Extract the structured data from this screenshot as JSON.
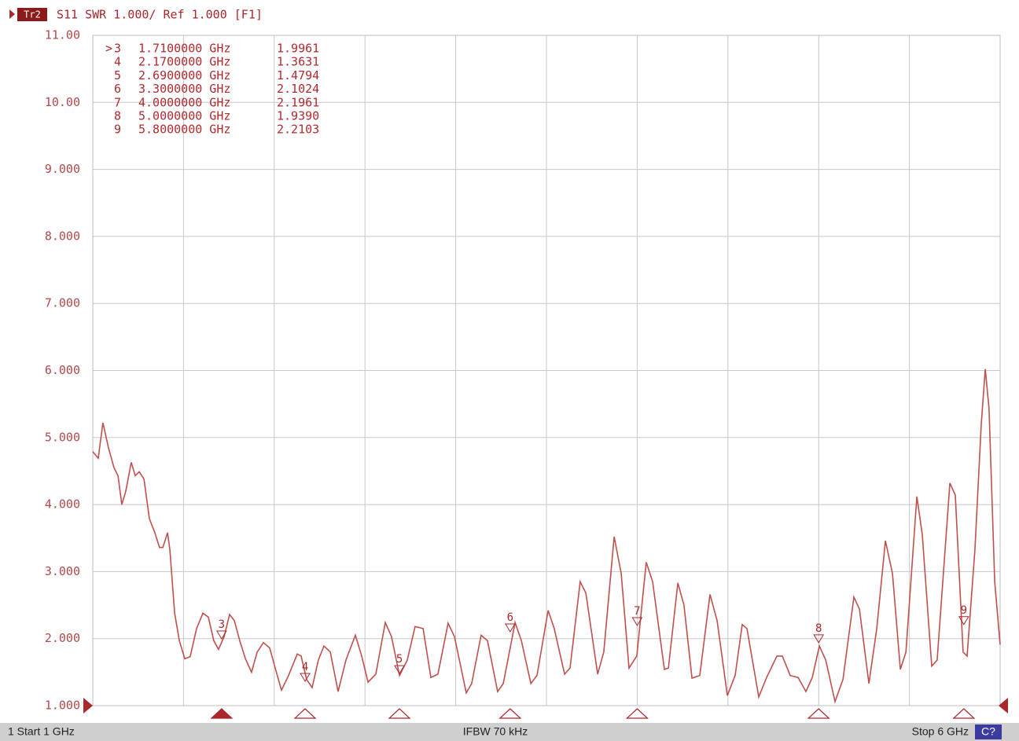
{
  "chart_data": {
    "type": "line",
    "trace": "Tr2",
    "title": "S11 SWR 1.000/ Ref 1.000 [F1]",
    "color": "#c0504d",
    "xlim": [
      1,
      6
    ],
    "xticks": [
      1,
      1.5,
      2,
      2.5,
      3,
      3.5,
      4,
      4.5,
      5,
      5.5,
      6
    ],
    "ylim": [
      1,
      11
    ],
    "yticks": [
      {
        "value": 1,
        "label": "1.000"
      },
      {
        "value": 2,
        "label": "2.000"
      },
      {
        "value": 3,
        "label": "3.000"
      },
      {
        "value": 4,
        "label": "4.000"
      },
      {
        "value": 5,
        "label": "5.000"
      },
      {
        "value": 6,
        "label": "6.000"
      },
      {
        "value": 7,
        "label": "7.000"
      },
      {
        "value": 8,
        "label": "8.000"
      },
      {
        "value": 9,
        "label": "9.000"
      },
      {
        "value": 10,
        "label": "10.00"
      },
      {
        "value": 11,
        "label": "11.00"
      }
    ],
    "grid": true,
    "x": [
      1.0,
      1.03,
      1.056,
      1.087,
      1.117,
      1.139,
      1.16,
      1.182,
      1.212,
      1.234,
      1.256,
      1.282,
      1.312,
      1.342,
      1.368,
      1.386,
      1.412,
      1.425,
      1.451,
      1.477,
      1.507,
      1.537,
      1.572,
      1.607,
      1.637,
      1.667,
      1.693,
      1.724,
      1.754,
      1.78,
      1.81,
      1.841,
      1.875,
      1.906,
      1.94,
      1.975,
      2.005,
      2.04,
      2.079,
      2.127,
      2.148,
      2.178,
      2.209,
      2.243,
      2.274,
      2.309,
      2.352,
      2.395,
      2.447,
      2.482,
      2.517,
      2.56,
      2.612,
      2.646,
      2.69,
      2.733,
      2.776,
      2.82,
      2.863,
      2.902,
      2.958,
      2.993,
      3.058,
      3.088,
      3.14,
      3.175,
      3.231,
      3.262,
      3.327,
      3.362,
      3.414,
      3.448,
      3.509,
      3.543,
      3.6,
      3.63,
      3.686,
      3.717,
      3.782,
      3.816,
      3.873,
      3.912,
      3.955,
      3.998,
      4.05,
      4.085,
      4.15,
      4.172,
      4.224,
      4.258,
      4.302,
      4.345,
      4.401,
      4.44,
      4.497,
      4.54,
      4.579,
      4.605,
      4.67,
      4.713,
      4.77,
      4.8,
      4.843,
      4.887,
      4.93,
      4.965,
      5.004,
      5.039,
      5.09,
      5.134,
      5.194,
      5.225,
      5.277,
      5.32,
      5.368,
      5.407,
      5.45,
      5.481,
      5.541,
      5.571,
      5.623,
      5.653,
      5.723,
      5.753,
      5.796,
      5.818,
      5.861,
      5.896,
      5.918,
      5.939,
      5.97,
      6.0
    ],
    "values": [
      4.79,
      4.69,
      5.22,
      4.84,
      4.55,
      4.43,
      4.0,
      4.2,
      4.63,
      4.43,
      4.49,
      4.38,
      3.79,
      3.58,
      3.36,
      3.36,
      3.58,
      3.32,
      2.38,
      1.97,
      1.7,
      1.73,
      2.15,
      2.38,
      2.32,
      1.97,
      1.84,
      2.03,
      2.36,
      2.27,
      1.97,
      1.7,
      1.5,
      1.8,
      1.94,
      1.86,
      1.56,
      1.23,
      1.45,
      1.77,
      1.74,
      1.39,
      1.27,
      1.68,
      1.89,
      1.8,
      1.21,
      1.68,
      2.05,
      1.74,
      1.35,
      1.47,
      2.24,
      2.03,
      1.45,
      1.68,
      2.18,
      2.15,
      1.42,
      1.47,
      2.23,
      2.03,
      1.19,
      1.33,
      2.05,
      1.97,
      1.21,
      1.33,
      2.24,
      1.97,
      1.33,
      1.45,
      2.42,
      2.15,
      1.47,
      1.56,
      2.85,
      2.68,
      1.47,
      1.8,
      3.52,
      2.97,
      1.56,
      1.74,
      3.14,
      2.85,
      1.54,
      1.56,
      2.83,
      2.5,
      1.41,
      1.45,
      2.66,
      2.27,
      1.15,
      1.45,
      2.21,
      2.15,
      1.13,
      1.42,
      1.74,
      1.74,
      1.45,
      1.42,
      1.21,
      1.42,
      1.89,
      1.68,
      1.06,
      1.39,
      2.62,
      2.44,
      1.33,
      2.15,
      3.46,
      2.97,
      1.54,
      1.8,
      4.12,
      3.55,
      1.59,
      1.68,
      4.32,
      4.14,
      1.8,
      1.74,
      3.32,
      5.2,
      6.02,
      5.43,
      2.85,
      1.91
    ],
    "markers": {
      "active": 0,
      "active_symbol": ">",
      "ids": [
        "3",
        "4",
        "5",
        "6",
        "7",
        "8",
        "9"
      ],
      "x": [
        1.71,
        2.17,
        2.69,
        3.3,
        4.0,
        5.0,
        5.8
      ],
      "x_labels": [
        "1.7100000 GHz",
        "2.1700000 GHz",
        "2.6900000 GHz",
        "3.3000000 GHz",
        "4.0000000 GHz",
        "5.0000000 GHz",
        "5.8000000 GHz"
      ],
      "values": [
        1.9961,
        1.3631,
        1.4794,
        2.1024,
        2.1961,
        1.939,
        2.2103
      ],
      "value_labels": [
        "1.9961",
        "1.3631",
        "1.4794",
        "2.1024",
        "2.1961",
        "1.9390",
        "2.2103"
      ]
    },
    "footer": {
      "start": "1  Start 1 GHz",
      "ifbw": "IFBW 70 kHz",
      "stop": "Stop 6 GHz",
      "tag": "C?"
    }
  }
}
